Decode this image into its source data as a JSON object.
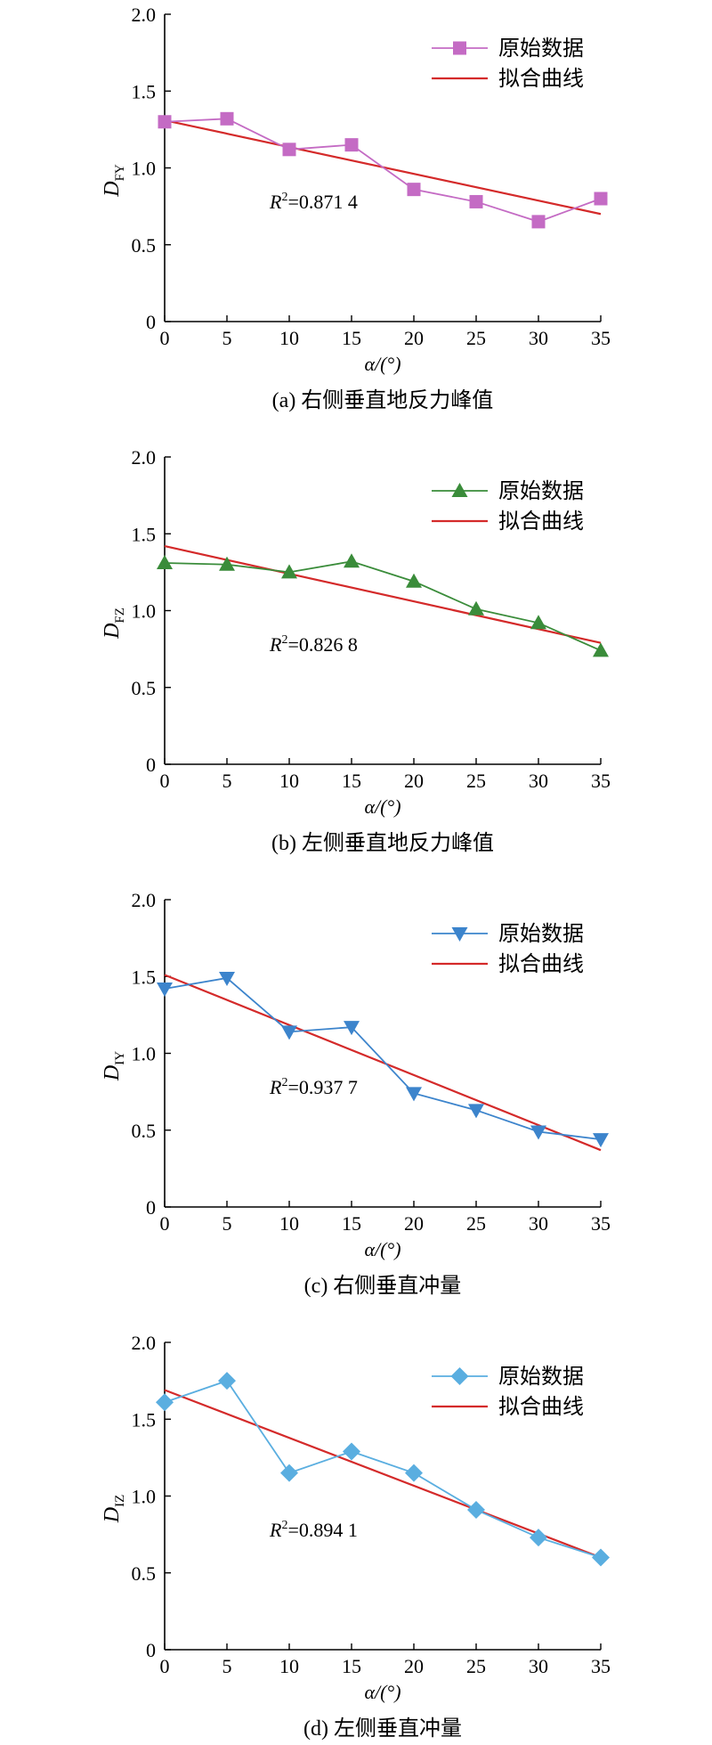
{
  "chart_data": [
    {
      "type": "line",
      "x": [
        0,
        5,
        10,
        15,
        20,
        25,
        30,
        35
      ],
      "xlabel": "α/(°)",
      "ylabel": {
        "main": "D",
        "sub": "FY"
      },
      "xlim": [
        0,
        35
      ],
      "ylim": [
        0,
        2.0
      ],
      "xticks": [
        "0",
        "5",
        "10",
        "15",
        "20",
        "25",
        "30",
        "35"
      ],
      "yticks": [
        "0",
        "0.5",
        "1.0",
        "1.5",
        "2.0"
      ],
      "series": [
        {
          "name": "原始数据",
          "values": [
            1.3,
            1.32,
            1.12,
            1.15,
            0.86,
            0.78,
            0.65,
            0.8
          ],
          "marker": "square",
          "color": "#c46bc4"
        },
        {
          "name": "拟合曲线",
          "fit": [
            1.31,
            0.7
          ],
          "color": "#d42a2a"
        }
      ],
      "annotation": {
        "label": "R",
        "sup": "2",
        "value": "=0.871 4"
      },
      "caption": "(a) 右侧垂直地反力峰值"
    },
    {
      "type": "line",
      "x": [
        0,
        5,
        10,
        15,
        20,
        25,
        30,
        35
      ],
      "xlabel": "α/(°)",
      "ylabel": {
        "main": "D",
        "sub": "FZ"
      },
      "xlim": [
        0,
        35
      ],
      "ylim": [
        0,
        2.0
      ],
      "xticks": [
        "0",
        "5",
        "10",
        "15",
        "20",
        "25",
        "30",
        "35"
      ],
      "yticks": [
        "0",
        "0.5",
        "1.0",
        "1.5",
        "2.0"
      ],
      "series": [
        {
          "name": "原始数据",
          "values": [
            1.31,
            1.3,
            1.25,
            1.32,
            1.19,
            1.01,
            0.92,
            0.74
          ],
          "marker": "triangle-up",
          "color": "#3a8c3a"
        },
        {
          "name": "拟合曲线",
          "fit": [
            1.42,
            0.79
          ],
          "color": "#d42a2a"
        }
      ],
      "annotation": {
        "label": "R",
        "sup": "2",
        "value": "=0.826 8"
      },
      "caption": "(b) 左侧垂直地反力峰值"
    },
    {
      "type": "line",
      "x": [
        0,
        5,
        10,
        15,
        20,
        25,
        30,
        35
      ],
      "xlabel": "α/(°)",
      "ylabel": {
        "main": "D",
        "sub": "IY"
      },
      "xlim": [
        0,
        35
      ],
      "ylim": [
        0,
        2.0
      ],
      "xticks": [
        "0",
        "5",
        "10",
        "15",
        "20",
        "25",
        "30",
        "35"
      ],
      "yticks": [
        "0",
        "0.5",
        "1.0",
        "1.5",
        "2.0"
      ],
      "series": [
        {
          "name": "原始数据",
          "values": [
            1.42,
            1.49,
            1.14,
            1.17,
            0.74,
            0.63,
            0.49,
            0.44
          ],
          "marker": "triangle-down",
          "color": "#3c84cc"
        },
        {
          "name": "拟合曲线",
          "fit": [
            1.51,
            0.37
          ],
          "color": "#d42a2a"
        }
      ],
      "annotation": {
        "label": "R",
        "sup": "2",
        "value": "=0.937 7"
      },
      "caption": "(c) 右侧垂直冲量"
    },
    {
      "type": "line",
      "x": [
        0,
        5,
        10,
        15,
        20,
        25,
        30,
        35
      ],
      "xlabel": "α/(°)",
      "ylabel": {
        "main": "D",
        "sub": "IZ"
      },
      "xlim": [
        0,
        35
      ],
      "ylim": [
        0,
        2.0
      ],
      "xticks": [
        "0",
        "5",
        "10",
        "15",
        "20",
        "25",
        "30",
        "35"
      ],
      "yticks": [
        "0",
        "0.5",
        "1.0",
        "1.5",
        "2.0"
      ],
      "series": [
        {
          "name": "原始数据",
          "values": [
            1.61,
            1.75,
            1.15,
            1.29,
            1.15,
            0.91,
            0.73,
            0.6
          ],
          "marker": "diamond",
          "color": "#5aaee0"
        },
        {
          "name": "拟合曲线",
          "fit": [
            1.69,
            0.6
          ],
          "color": "#d42a2a"
        }
      ],
      "annotation": {
        "label": "R",
        "sup": "2",
        "value": "=0.894 1"
      },
      "caption": "(d) 左侧垂直冲量"
    }
  ]
}
